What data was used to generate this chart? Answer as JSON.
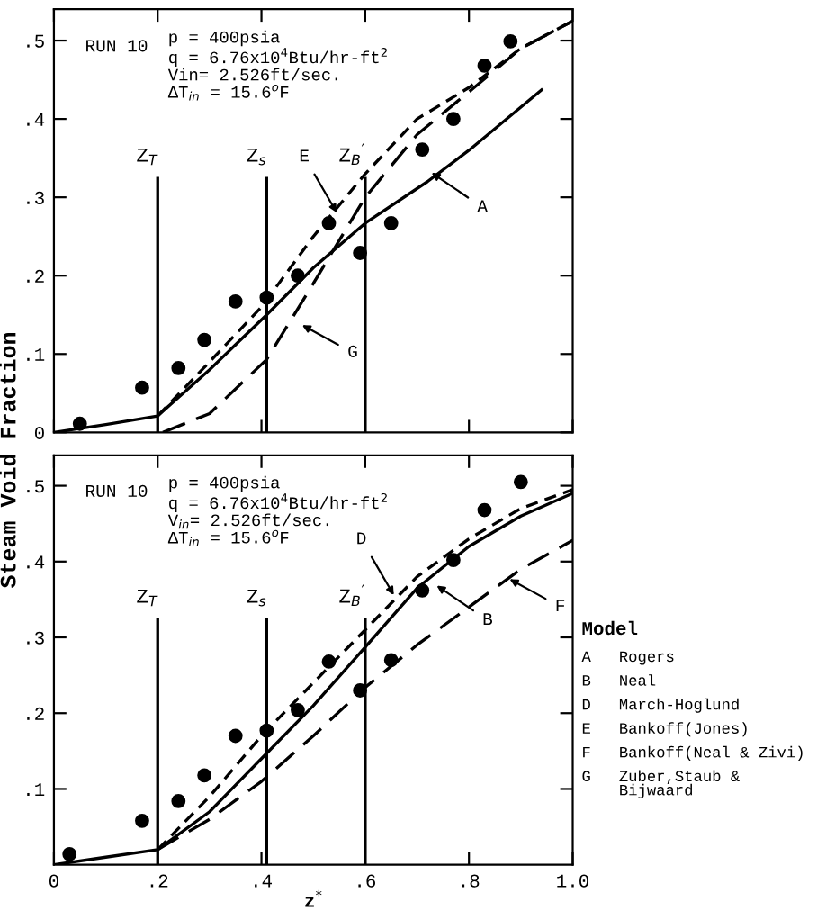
{
  "chart_data": [
    {
      "type": "scatter",
      "ylabel": "Steam Void Fraction",
      "xlim": [
        0,
        1.0
      ],
      "ylim": [
        0,
        0.54
      ],
      "xticks": [
        0,
        0.2,
        0.4,
        0.6,
        0.8,
        1.0
      ],
      "yticks": [
        {
          "value": 0,
          "label": "0"
        },
        {
          "value": 0.1,
          "label": ".1"
        },
        {
          "value": 0.2,
          "label": ".2"
        },
        {
          "value": 0.3,
          "label": ".3"
        },
        {
          "value": 0.4,
          "label": ".4"
        },
        {
          "value": 0.5,
          "label": ".5"
        }
      ],
      "tick_labels": "y",
      "grid": false,
      "series": [
        {
          "marker": "circle",
          "color": "#000000",
          "x": [
            0.05,
            0.17,
            0.24,
            0.29,
            0.35,
            0.41,
            0.47,
            0.53,
            0.59,
            0.65,
            0.71,
            0.77,
            0.83,
            0.88
          ],
          "values": [
            0.011,
            0.057,
            0.082,
            0.118,
            0.167,
            0.172,
            0.2,
            0.267,
            0.229,
            0.267,
            0.361,
            0.4,
            0.468,
            0.499
          ]
        },
        {
          "type": "line",
          "line_style": "solid",
          "color": "#000000",
          "x": [
            0,
            0.1,
            0.2,
            0.3,
            0.41,
            0.5,
            0.6,
            0.72,
            0.8,
            0.94
          ],
          "values": [
            0,
            0.01,
            0.021,
            0.08,
            0.15,
            0.21,
            0.267,
            0.32,
            0.36,
            0.437
          ]
        },
        {
          "type": "line",
          "line_style": "dashed",
          "color": "#000000",
          "x": [
            0.2,
            0.3,
            0.4,
            0.5,
            0.6,
            0.7,
            0.8,
            0.9,
            1.0
          ],
          "values": [
            0.021,
            0.09,
            0.16,
            0.25,
            0.33,
            0.4,
            0.44,
            0.49,
            0.525
          ]
        },
        {
          "type": "line",
          "line_style": "dashed",
          "color": "#000000",
          "x": [
            0.21,
            0.3,
            0.41,
            0.5,
            0.6,
            0.7,
            0.81,
            0.9,
            1.0
          ],
          "values": [
            0,
            0.024,
            0.093,
            0.19,
            0.3,
            0.38,
            0.44,
            0.49,
            0.525
          ]
        }
      ],
      "ref_lines": [
        {
          "axis": "x",
          "value": 0.2,
          "label": "Z$_{T}$"
        },
        {
          "axis": "x",
          "value": 0.41,
          "label": "Z$_{s}$"
        },
        {
          "axis": "x",
          "value": 0.6,
          "label": "Z$_{B}$$^{′}$"
        }
      ],
      "annotations": [
        "RUN 10",
        "p = 400psia\nq = 6.76x10$^{4}$Btu/hr-ft$^{2}$\nVin= 2.526ft/sec.\nΔT$_{in}$ = 15.6$^{o}$F",
        {
          "text": "E",
          "x": 0.55,
          "y": 0.275
        },
        {
          "text": "A",
          "x": 0.72,
          "y": 0.335
        },
        {
          "text": "G",
          "x": 0.47,
          "y": 0.14
        }
      ]
    },
    {
      "type": "scatter",
      "xlabel": "z$^{*}$",
      "xlim": [
        0,
        1.0
      ],
      "ylim": [
        0,
        0.54
      ],
      "xticks": [
        {
          "value": 0,
          "label": "0"
        },
        {
          "value": 0.2,
          "label": ".2"
        },
        {
          "value": 0.4,
          "label": ".4"
        },
        {
          "value": 0.6,
          "label": ".6"
        },
        {
          "value": 0.8,
          "label": ".8"
        },
        {
          "value": 1.0,
          "label": "1.0"
        }
      ],
      "yticks": [
        {
          "value": 0.1,
          "label": ".1"
        },
        {
          "value": 0.2,
          "label": ".2"
        },
        {
          "value": 0.3,
          "label": ".3"
        },
        {
          "value": 0.4,
          "label": ".4"
        },
        {
          "value": 0.5,
          "label": ".5"
        }
      ],
      "grid": false,
      "series": [
        {
          "marker": "circle",
          "color": "#000000",
          "x": [
            0.03,
            0.17,
            0.24,
            0.29,
            0.35,
            0.41,
            0.47,
            0.53,
            0.59,
            0.65,
            0.71,
            0.77,
            0.83,
            0.9
          ],
          "values": [
            0.014,
            0.058,
            0.084,
            0.118,
            0.17,
            0.177,
            0.204,
            0.268,
            0.23,
            0.27,
            0.362,
            0.402,
            0.468,
            0.505
          ]
        },
        {
          "type": "line",
          "line_style": "solid",
          "color": "#000000",
          "x": [
            0,
            0.1,
            0.2,
            0.3,
            0.4,
            0.5,
            0.6,
            0.7,
            0.8,
            0.9,
            1.0
          ],
          "values": [
            0,
            0.01,
            0.02,
            0.07,
            0.14,
            0.21,
            0.287,
            0.365,
            0.42,
            0.46,
            0.49
          ]
        },
        {
          "type": "line",
          "line_style": "dashed",
          "color": "#000000",
          "x": [
            0.2,
            0.3,
            0.4,
            0.5,
            0.6,
            0.7,
            0.8,
            0.9,
            1.0
          ],
          "values": [
            0.02,
            0.09,
            0.17,
            0.24,
            0.31,
            0.38,
            0.43,
            0.47,
            0.495
          ]
        },
        {
          "type": "line",
          "line_style": "dashed",
          "color": "#000000",
          "x": [
            0.2,
            0.3,
            0.4,
            0.5,
            0.6,
            0.7,
            0.8,
            0.9,
            1.0
          ],
          "values": [
            0.02,
            0.06,
            0.11,
            0.17,
            0.234,
            0.29,
            0.34,
            0.39,
            0.428
          ]
        }
      ],
      "ref_lines": [
        {
          "axis": "x",
          "value": 0.2,
          "label": "Z$_{T}$"
        },
        {
          "axis": "x",
          "value": 0.41,
          "label": "Z$_{s}$"
        },
        {
          "axis": "x",
          "value": 0.6,
          "label": "Z$_{B}$$^{′}$"
        }
      ],
      "annotations": [
        "RUN 10",
        "p = 400psia\nq = 6.76x10$^{4}$Btu/hr-ft$^{2}$\nV$_{in}$= 2.526ft/sec.\nΔT$_{in}$ = 15.6$^{o}$F",
        {
          "text": "D",
          "x": 0.66,
          "y": 0.35
        },
        {
          "text": "B",
          "x": 0.73,
          "y": 0.372
        },
        {
          "text": "F",
          "x": 0.87,
          "y": 0.38
        },
        "Model",
        "A   Rogers",
        "B   Neal",
        "D   March-Hoglund",
        "E   Bankoff(Jones)",
        "F   Bankoff(Neal & Zivi)",
        "G   Zuber,Staub &\n    Bijwaard"
      ]
    }
  ]
}
